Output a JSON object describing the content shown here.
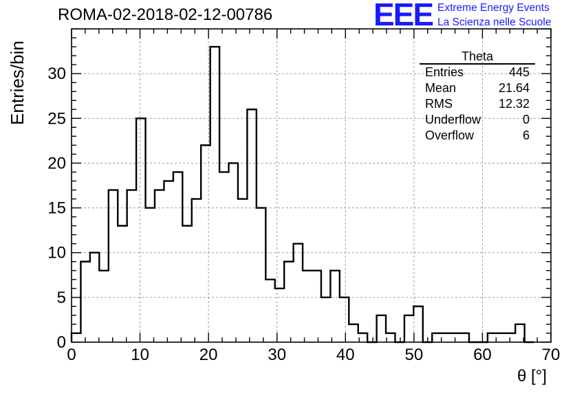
{
  "header": {
    "run_title": "ROMA-02-2018-02-12-00786",
    "logo_text": "EEE",
    "logo_line1": "Extreme Energy Events",
    "logo_line2": "La Scienza nelle Scuole"
  },
  "stats_box": {
    "title": "Theta",
    "rows": [
      {
        "label": "Entries",
        "value": "445"
      },
      {
        "label": "Mean",
        "value": "21.64"
      },
      {
        "label": "RMS",
        "value": "12.32"
      },
      {
        "label": "Underflow",
        "value": "0"
      },
      {
        "label": "Overflow",
        "value": "6"
      }
    ]
  },
  "colors": {
    "logo": "#1a1aff",
    "line": "#000000",
    "grid": "#999999"
  },
  "chart_data": {
    "type": "bar",
    "style": "step-histogram",
    "title": "ROMA-02-2018-02-12-00786",
    "xlabel": "θ [°]",
    "ylabel": "Entries/bin",
    "xlim": [
      0,
      70
    ],
    "ylim": [
      0,
      35
    ],
    "x_ticks": [
      "0",
      "10",
      "20",
      "30",
      "40",
      "50",
      "60",
      "70"
    ],
    "y_ticks": [
      "0",
      "5",
      "10",
      "15",
      "20",
      "25",
      "30"
    ],
    "grid": true,
    "bin_edges": [
      0,
      1.35,
      2.7,
      4.05,
      5.4,
      6.75,
      8.1,
      9.45,
      10.8,
      12.15,
      13.5,
      14.85,
      16.2,
      17.55,
      18.9,
      20.25,
      21.6,
      22.95,
      24.3,
      25.65,
      27.0,
      28.35,
      29.7,
      31.05,
      32.4,
      33.75,
      35.1,
      36.45,
      37.8,
      39.15,
      40.5,
      41.85,
      43.2,
      44.55,
      45.9,
      47.25,
      48.6,
      49.95,
      51.3,
      52.65,
      54.0,
      55.35,
      56.7,
      58.05,
      59.4,
      60.75,
      62.1,
      63.45,
      64.8,
      66.15,
      67.5
    ],
    "values": [
      1,
      9,
      10,
      8,
      17,
      13,
      17,
      25,
      15,
      17,
      18,
      19,
      13,
      16,
      22,
      33,
      19,
      20,
      16,
      26,
      15,
      7,
      6,
      9,
      11,
      8,
      8,
      5,
      8,
      5,
      2,
      1,
      0,
      3,
      1,
      0,
      3,
      4,
      0,
      1,
      1,
      1,
      1,
      0,
      0,
      1,
      1,
      1,
      2,
      0
    ]
  }
}
